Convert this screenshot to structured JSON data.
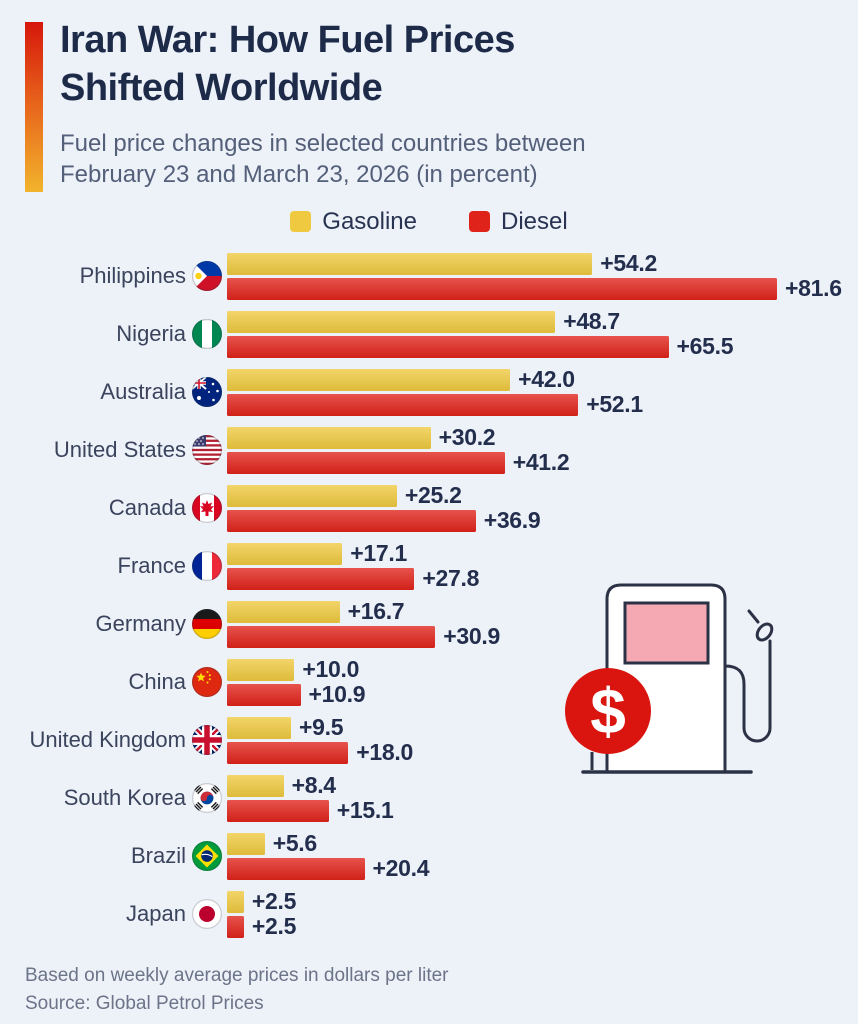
{
  "page": {
    "background": "#edf1f8"
  },
  "header": {
    "title_line1": "Iran War: How Fuel Prices",
    "title_line2": "Shifted Worldwide",
    "subtitle_line1": "Fuel price changes in selected countries between",
    "subtitle_line2": "February 23 and March 23, 2026 (in percent)",
    "accent_gradient": [
      "#d6170b",
      "#e8671c",
      "#f2b42c"
    ]
  },
  "legend": {
    "items": [
      {
        "label": "Gasoline",
        "color": "#efc93f"
      },
      {
        "label": "Diesel",
        "color": "#e0231a"
      }
    ]
  },
  "chart_data": {
    "type": "bar",
    "orientation": "horizontal",
    "title": "Iran War: How Fuel Prices Shifted Worldwide",
    "subtitle": "Fuel price changes in selected countries between February 23 and March 23, 2026 (in percent)",
    "unit": "percent",
    "xlim": [
      0,
      81.6
    ],
    "grid": false,
    "legend_position": "top-center",
    "categories": [
      "Philippines",
      "Nigeria",
      "Australia",
      "United States",
      "Canada",
      "France",
      "Germany",
      "China",
      "United Kingdom",
      "South Korea",
      "Brazil",
      "Japan"
    ],
    "flags": [
      "philippines",
      "nigeria",
      "australia",
      "united-states",
      "canada",
      "france",
      "germany",
      "china",
      "united-kingdom",
      "south-korea",
      "brazil",
      "japan"
    ],
    "series": [
      {
        "name": "Gasoline",
        "color": "#efc93f",
        "values": [
          54.2,
          48.7,
          42.0,
          30.2,
          25.2,
          17.1,
          16.7,
          10.0,
          9.5,
          8.4,
          5.6,
          2.5
        ],
        "labels": [
          "+54.2",
          "+48.7",
          "+42.0",
          "+30.2",
          "+25.2",
          "+17.1",
          "+16.7",
          "+10.0",
          "+9.5",
          "+8.4",
          "+5.6",
          "+2.5"
        ]
      },
      {
        "name": "Diesel",
        "color": "#e0231a",
        "values": [
          81.6,
          65.5,
          52.1,
          41.2,
          36.9,
          27.8,
          30.9,
          10.9,
          18.0,
          15.1,
          20.4,
          2.5
        ],
        "labels": [
          "+81.6",
          "+65.5",
          "+52.1",
          "+41.2",
          "+36.9",
          "+27.8",
          "+30.9",
          "+10.9",
          "+18.0",
          "+15.1",
          "+20.4",
          "+2.5"
        ]
      }
    ]
  },
  "illustration": {
    "name": "fuel-pump-with-dollar-sign",
    "dollar_circle_color": "#da150f",
    "screen_color": "#f4a9b3",
    "outline_color": "#2b3245",
    "dollar_glyph": "$"
  },
  "footer": {
    "note": "Based on weekly average prices in dollars per liter",
    "source": "Source: Global Petrol Prices"
  }
}
